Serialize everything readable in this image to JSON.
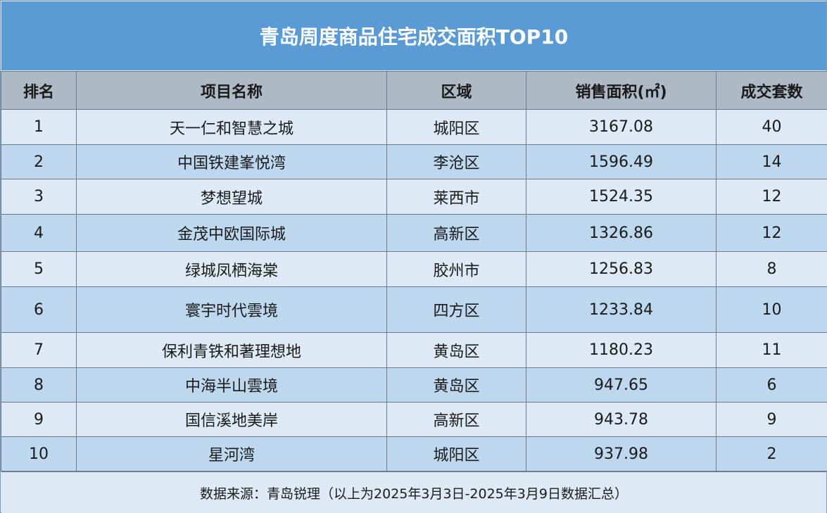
{
  "title": "青岛周度商品住宅成交面积TOP10",
  "headers": {
    "rank": "排名",
    "name": "项目名称",
    "district": "区域",
    "area": "销售面积(㎡)",
    "units": "成交套数"
  },
  "rows": [
    {
      "rank": "1",
      "name": "天一仁和智慧之城",
      "district": "城阳区",
      "area": "3167.08",
      "units": "40"
    },
    {
      "rank": "2",
      "name": "中国铁建峯悦湾",
      "district": "李沧区",
      "area": "1596.49",
      "units": "14"
    },
    {
      "rank": "3",
      "name": "梦想望城",
      "district": "莱西市",
      "area": "1524.35",
      "units": "12"
    },
    {
      "rank": "4",
      "name": "金茂中欧国际城",
      "district": "高新区",
      "area": "1326.86",
      "units": "12"
    },
    {
      "rank": "5",
      "name": "绿城凤栖海棠",
      "district": "胶州市",
      "area": "1256.83",
      "units": "8"
    },
    {
      "rank": "6",
      "name": "寰宇时代雲境",
      "district": "四方区",
      "area": "1233.84",
      "units": "10"
    },
    {
      "rank": "7",
      "name": "保利青铁和著理想地",
      "district": "黄岛区",
      "area": "1180.23",
      "units": "11"
    },
    {
      "rank": "8",
      "name": "中海半山雲境",
      "district": "黄岛区",
      "area": "947.65",
      "units": "6"
    },
    {
      "rank": "9",
      "name": "国信溪地美岸",
      "district": "高新区",
      "area": "943.78",
      "units": "9"
    },
    {
      "rank": "10",
      "name": "星河湾",
      "district": "城阳区",
      "area": "937.98",
      "units": "2"
    }
  ],
  "footer": "数据来源：青岛锐理（以上为2025年3月3日-2025年3月9日数据汇总）",
  "colors": {
    "title_bg": "#5b9bd5",
    "header_bg": "#aeb9c6",
    "row_light": "#ddeaf6",
    "row_dark": "#bdd7ee"
  }
}
